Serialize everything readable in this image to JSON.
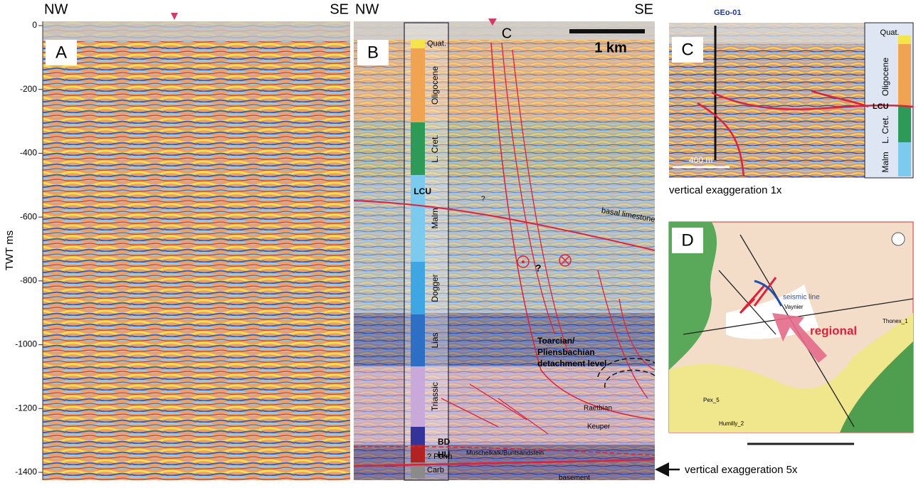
{
  "panel_a": {
    "label": "A",
    "left": "NW",
    "right": "SE",
    "axis_label": "TWT ms",
    "yticks": [
      0,
      -200,
      -400,
      -600,
      -800,
      -1000,
      -1200,
      -1400
    ],
    "ylim": [
      0,
      -1400
    ]
  },
  "panel_b": {
    "label": "B",
    "left": "NW",
    "right": "SE",
    "section_marker": "C",
    "scale_bar": "1 km",
    "column": [
      {
        "name": "Quat.",
        "color": "#f5e44a"
      },
      {
        "name": "Oligocene",
        "color": "#f0a452"
      },
      {
        "name": "L. Cret.",
        "color": "#2e9a58"
      },
      {
        "name": "Malm",
        "color": "#7ccbef"
      },
      {
        "name": "Dogger",
        "color": "#3ea6e2"
      },
      {
        "name": "Lias",
        "color": "#2c6fc4"
      },
      {
        "name": "Triassic",
        "color": "#c9a9d9"
      },
      {
        "name": "? Perm",
        "color": "#b22222"
      },
      {
        "name": "Carb",
        "color": "#8a8a8a"
      }
    ],
    "horizons": [
      "LCU",
      "BD",
      "HU"
    ],
    "annotations": [
      "basal limestone",
      "Toarcian/",
      "Pliensbachian",
      "detachment level",
      "Raetbian",
      "Keuper",
      "Muschelkalk/Buntsandstein",
      "basement",
      "?",
      "?"
    ]
  },
  "panel_c": {
    "label": "C",
    "well": "GEo-01",
    "scale_bar": "400 m",
    "column": [
      "Quat.",
      "Oligocene",
      "L. Cret.",
      "Malm"
    ],
    "horizon": "LCU",
    "caption": "vertical exaggeration 1x"
  },
  "panel_d": {
    "label": "D",
    "labels": [
      "seismic line",
      "regional",
      "Vaynier",
      "Thonex_1",
      "Humilly_2",
      "Pex_5"
    ]
  },
  "caption_b": "vertical exaggeration 5x"
}
